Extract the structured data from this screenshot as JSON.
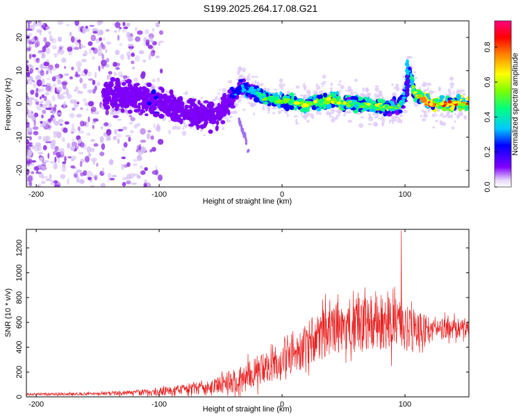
{
  "figure_title": "S199.2025.264.17.08.G21",
  "chart_data": [
    {
      "type": "heatmap",
      "title": "S199.2025.264.17.08.G21",
      "xlabel": "Height of straight line (km)",
      "ylabel": "Frequency (Hz)",
      "xlim": [
        -208,
        152
      ],
      "ylim": [
        -25,
        25
      ],
      "x_ticks": [
        -200,
        -100,
        0,
        100
      ],
      "y_ticks": [
        -20,
        -10,
        0,
        10,
        20
      ],
      "colorbar": {
        "label": "Normalized spectral amplitude",
        "range": [
          0,
          0.95
        ],
        "ticks": [
          "0.0",
          "0.2",
          "0.4",
          "0.6",
          "0.8"
        ],
        "tick_values": [
          0.0,
          0.2,
          0.4,
          0.6,
          0.8
        ],
        "colors": [
          "#e8d8fa",
          "#8000ff",
          "#0000ff",
          "#00c8ff",
          "#00ff80",
          "#80ff00",
          "#ffff00",
          "#ff8000",
          "#ff0000",
          "#ff0080"
        ]
      },
      "ridge": {
        "x": [
          -145,
          -120,
          -100,
          -80,
          -60,
          -45,
          -35,
          -25,
          -15,
          0,
          20,
          40,
          60,
          80,
          95,
          100,
          103,
          108,
          120,
          135,
          150
        ],
        "y": [
          3,
          2,
          0,
          -2,
          -4,
          -1,
          5,
          4,
          2,
          1,
          0,
          1,
          0,
          -1,
          -1,
          2,
          11,
          3,
          0,
          0,
          0
        ],
        "amplitude": [
          0.18,
          0.2,
          0.2,
          0.18,
          0.15,
          0.2,
          0.3,
          0.4,
          0.5,
          0.55,
          0.6,
          0.65,
          0.55,
          0.6,
          0.5,
          0.45,
          0.25,
          0.7,
          0.9,
          0.85,
          0.75
        ]
      },
      "secondary_trace": {
        "x": [
          -35,
          -30,
          -27
        ],
        "y": [
          -5,
          -10,
          -15
        ]
      }
    },
    {
      "type": "line",
      "xlabel": "Height of straight line (km)",
      "ylabel": "SNR (10 * v/v)",
      "xlim": [
        -208,
        152
      ],
      "ylim": [
        0,
        1350
      ],
      "x_ticks": [
        -200,
        -100,
        0,
        100
      ],
      "y_ticks": [
        0,
        200,
        400,
        600,
        800,
        1000,
        1200
      ],
      "color": "#e82020",
      "envelope": {
        "x": [
          -208,
          -150,
          -100,
          -60,
          -30,
          -10,
          0,
          20,
          40,
          60,
          80,
          100,
          120,
          152
        ],
        "mean": [
          20,
          25,
          40,
          80,
          150,
          250,
          300,
          420,
          550,
          580,
          600,
          560,
          540,
          560
        ],
        "spread": [
          10,
          12,
          30,
          50,
          120,
          130,
          150,
          180,
          200,
          220,
          230,
          200,
          100,
          70
        ]
      },
      "peak": {
        "x": 97,
        "y": 1340
      }
    }
  ]
}
